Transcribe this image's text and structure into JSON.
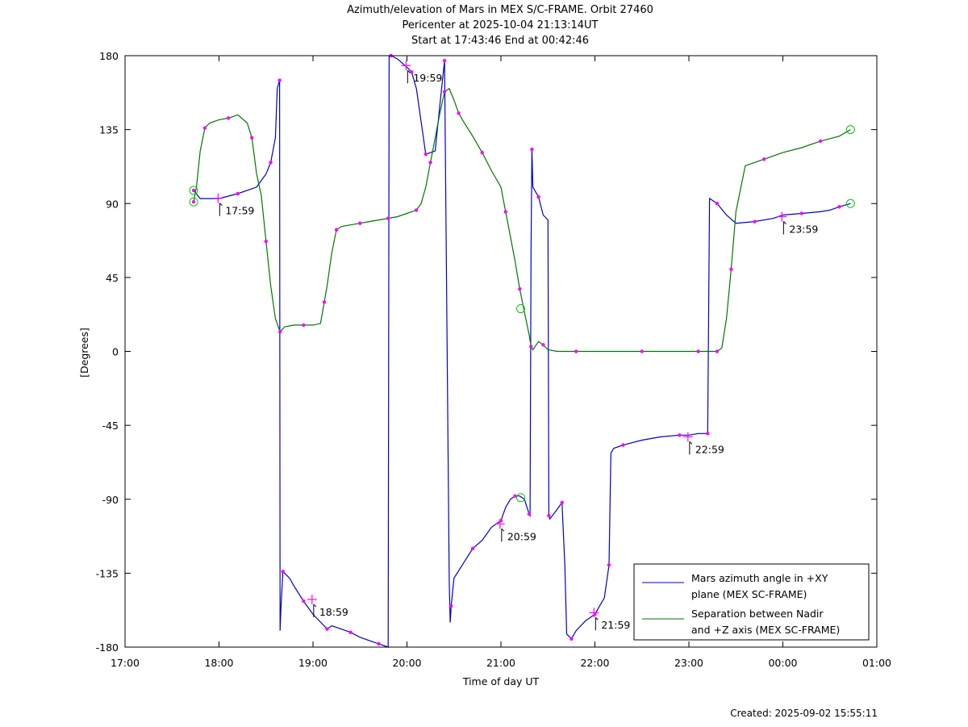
{
  "title_lines": [
    "Azimuth/elevation of Mars in MEX S/C-FRAME.  Orbit 27460",
    "Pericenter at 2025-10-04 21:13:14UT",
    "Start at 17:43:46 End at 00:42:46"
  ],
  "footer": {
    "created": "Created: 2025-09-02 15:55:11"
  },
  "chart_data": {
    "type": "line",
    "xlabel": "Time of day UT",
    "ylabel": "[Degrees]",
    "xlim": [
      17.0,
      25.0
    ],
    "ylim": [
      -180,
      180
    ],
    "x_ticks": [
      {
        "value": 17,
        "label": "17:00"
      },
      {
        "value": 18,
        "label": "18:00"
      },
      {
        "value": 19,
        "label": "19:00"
      },
      {
        "value": 20,
        "label": "20:00"
      },
      {
        "value": 21,
        "label": "21:00"
      },
      {
        "value": 22,
        "label": "22:00"
      },
      {
        "value": 23,
        "label": "23:00"
      },
      {
        "value": 24,
        "label": "00:00"
      },
      {
        "value": 25,
        "label": "01:00"
      }
    ],
    "y_ticks": [
      180,
      135,
      90,
      45,
      0,
      -45,
      -90,
      -135,
      -180
    ],
    "legend_position": "bottom-right",
    "series": [
      {
        "name": "Mars azimuth angle in +XY plane (MEX SC-FRAME)",
        "legend_lines": [
          "Mars azimuth angle in +XY",
          "plane (MEX SC-FRAME)"
        ],
        "color": "#0000cc",
        "x": [
          17.73,
          17.8,
          18.0,
          18.2,
          18.4,
          18.5,
          18.55,
          18.6,
          18.62,
          18.645,
          18.65,
          18.66,
          18.68,
          18.75,
          18.8,
          18.9,
          19.0,
          19.1,
          19.15,
          19.2,
          19.3,
          19.4,
          19.5,
          19.6,
          19.7,
          19.8,
          19.81,
          19.83,
          19.9,
          20.0,
          20.05,
          20.1,
          20.15,
          20.2,
          20.3,
          20.35,
          20.4,
          20.45,
          20.46,
          20.47,
          20.5,
          20.6,
          20.7,
          20.8,
          20.9,
          21.0,
          21.05,
          21.1,
          21.15,
          21.2,
          21.25,
          21.3,
          21.31,
          21.32,
          21.33,
          21.34,
          21.35,
          21.4,
          21.45,
          21.5,
          21.51,
          21.52,
          21.6,
          21.65,
          21.68,
          21.7,
          21.75,
          21.8,
          21.9,
          22.0,
          22.05,
          22.1,
          22.15,
          22.17,
          22.2,
          22.3,
          22.5,
          22.7,
          22.9,
          23.0,
          23.1,
          23.2,
          23.22,
          23.25,
          23.3,
          23.4,
          23.5,
          23.7,
          23.9,
          24.0,
          24.2,
          24.4,
          24.5,
          24.6,
          24.72
        ],
        "y": [
          98,
          93,
          93,
          96,
          100,
          108,
          115,
          130,
          160,
          165,
          -170,
          -155,
          -134,
          -138,
          -143,
          -152,
          -160,
          -166,
          -169,
          -167,
          -169,
          -171,
          -174,
          -176,
          -178,
          -180,
          180,
          180,
          178,
          173,
          170,
          160,
          140,
          120,
          122,
          150,
          177,
          -140,
          -165,
          -155,
          -138,
          -129,
          -120,
          -115,
          -107,
          -103,
          -95,
          -90,
          -88,
          -88,
          -90,
          -99,
          -100,
          60,
          123,
          100,
          99,
          94,
          83,
          80,
          -100,
          -102,
          -96,
          -92,
          -130,
          -172,
          -175,
          -170,
          -164,
          -160,
          -155,
          -150,
          -130,
          -62,
          -59,
          -57,
          -54,
          -52,
          -51,
          -51,
          -50,
          -50,
          93,
          92,
          90,
          83,
          78,
          79,
          81,
          83,
          84,
          85,
          86,
          88,
          90
        ]
      },
      {
        "name": "Separation between Nadir and +Z axis (MEX SC-FRAME)",
        "legend_lines": [
          "Separation between Nadir",
          "and +Z axis (MEX SC-FRAME)"
        ],
        "color": "#007700",
        "x": [
          17.73,
          17.76,
          17.8,
          17.85,
          17.9,
          18.0,
          18.1,
          18.2,
          18.3,
          18.35,
          18.4,
          18.45,
          18.5,
          18.55,
          18.6,
          18.65,
          18.7,
          18.8,
          18.9,
          19.0,
          19.08,
          19.12,
          19.15,
          19.2,
          19.25,
          19.3,
          19.4,
          19.5,
          19.6,
          19.7,
          19.8,
          19.9,
          20.0,
          20.1,
          20.15,
          20.2,
          20.25,
          20.3,
          20.35,
          20.4,
          20.45,
          20.5,
          20.55,
          20.6,
          20.7,
          20.8,
          20.9,
          21.0,
          21.05,
          21.1,
          21.15,
          21.2,
          21.25,
          21.3,
          21.32,
          21.34,
          21.4,
          21.45,
          21.5,
          21.6,
          21.8,
          22.0,
          22.2,
          22.5,
          22.8,
          23.0,
          23.1,
          23.2,
          23.25,
          23.3,
          23.35,
          23.4,
          23.45,
          23.5,
          23.6,
          23.8,
          24.0,
          24.2,
          24.4,
          24.6,
          24.72
        ],
        "y": [
          91,
          100,
          122,
          136,
          139,
          141,
          142,
          144,
          139,
          130,
          108,
          95,
          67,
          40,
          20,
          12,
          15,
          16,
          16,
          16,
          17,
          30,
          40,
          60,
          74,
          76,
          77,
          78,
          79,
          80,
          81,
          82,
          84,
          86,
          90,
          100,
          115,
          130,
          145,
          158,
          160,
          153,
          145,
          140,
          131,
          121,
          110,
          100,
          85,
          70,
          55,
          38,
          24,
          10,
          3,
          1,
          6,
          4,
          1,
          0,
          0,
          0,
          0,
          0,
          0,
          0,
          0,
          0,
          0,
          0,
          2,
          20,
          50,
          85,
          113,
          117,
          121,
          124,
          128,
          131,
          135
        ]
      }
    ],
    "markers": [
      {
        "x": 17.99,
        "y": 93.2,
        "label": "17:59"
      },
      {
        "x": 18.99,
        "y": -151,
        "label": "18:59"
      },
      {
        "x": 19.99,
        "y": 174,
        "label": "19:59"
      },
      {
        "x": 20.99,
        "y": -105,
        "label": "20:59"
      },
      {
        "x": 21.99,
        "y": -159,
        "label": "21:59"
      },
      {
        "x": 22.99,
        "y": -52,
        "label": "22:59"
      },
      {
        "x": 23.99,
        "y": 82,
        "label": "23:59"
      }
    ],
    "open_circles": [
      {
        "x": 17.73,
        "y": 98
      },
      {
        "x": 17.73,
        "y": 91
      },
      {
        "x": 21.21,
        "y": -89
      },
      {
        "x": 21.21,
        "y": 26
      },
      {
        "x": 24.72,
        "y": 90
      },
      {
        "x": 24.72,
        "y": 135
      }
    ]
  }
}
